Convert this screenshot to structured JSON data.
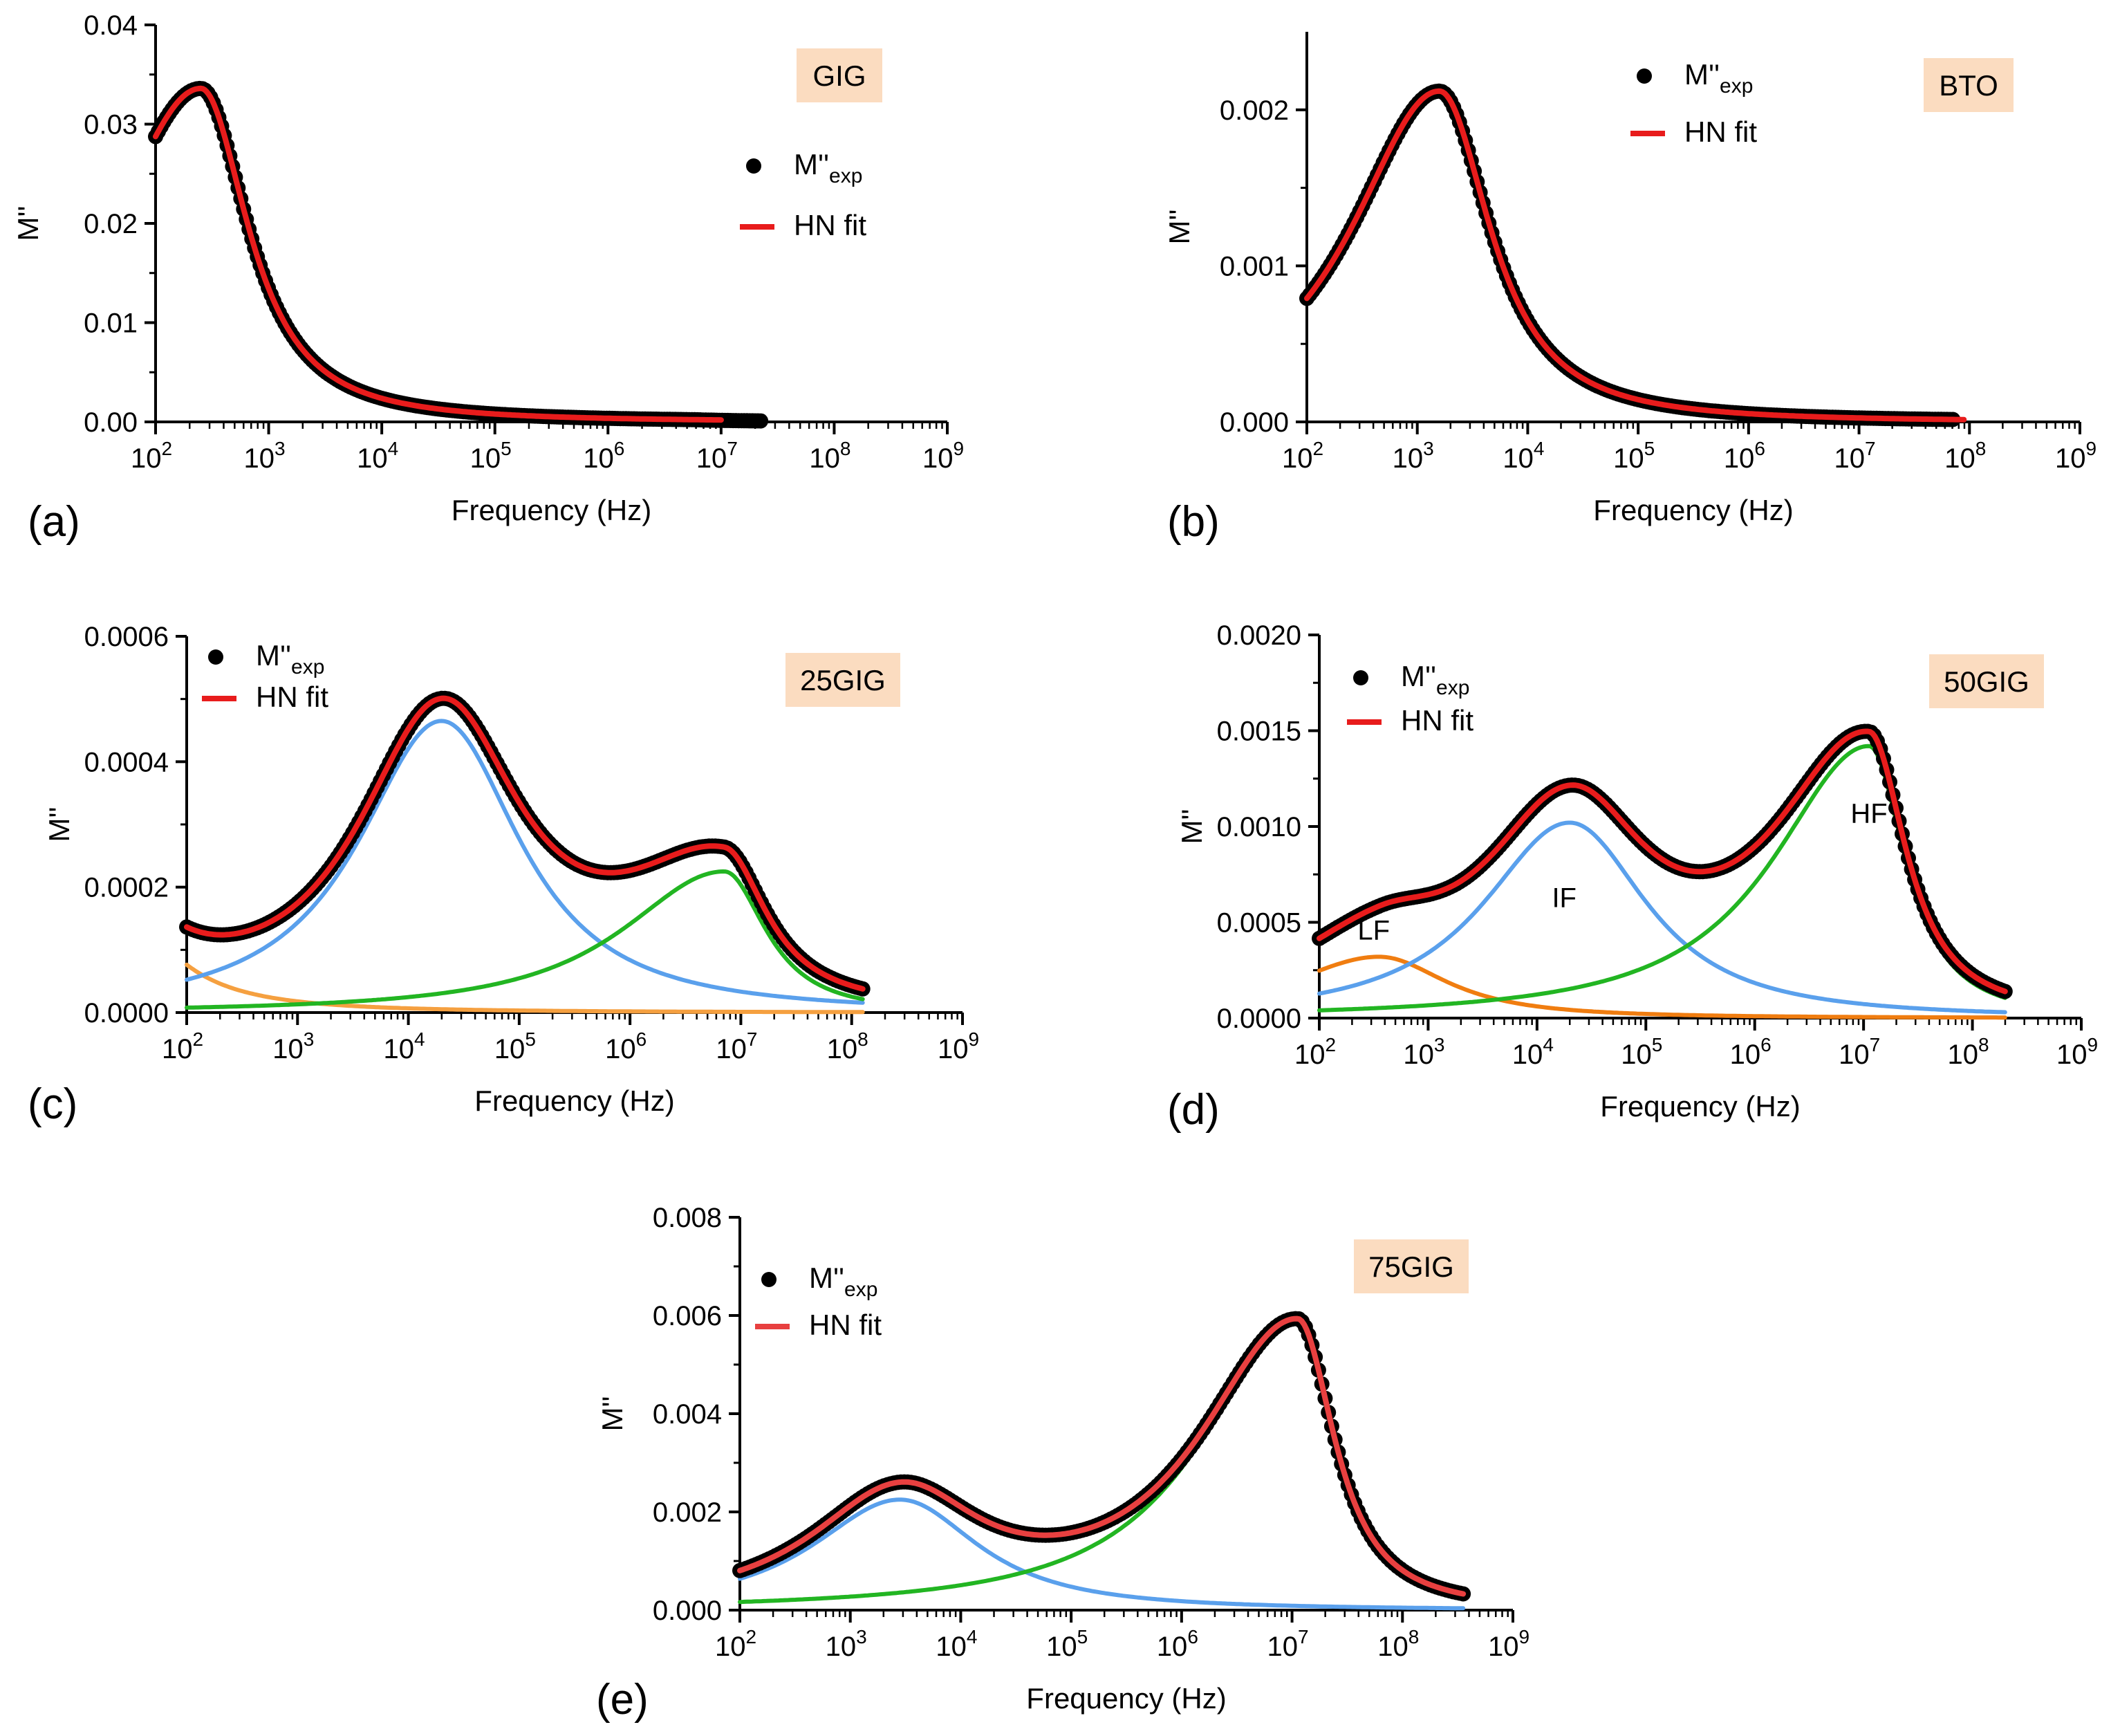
{
  "chart_data": [
    {
      "panel": "(a)",
      "type": "line",
      "sample": "GIG",
      "xlabel": "Frequency (Hz)",
      "ylabel": "M''",
      "xscale": "log",
      "xlim_exp": [
        2,
        9
      ],
      "x_tick_base": "10",
      "ylim": [
        0,
        0.04
      ],
      "y_ticks": [
        "0.00",
        "0.01",
        "0.02",
        "0.03",
        "0.04"
      ],
      "legend": {
        "position": "right",
        "exp_main": "M''",
        "exp_sub": "exp",
        "fit": "HN fit"
      },
      "series": [
        {
          "name": "M''exp",
          "kind": "points",
          "color": "#000000",
          "x_range_exp": [
            2.0,
            7.35
          ],
          "peaks": [
            [
              0.0336,
              2.4,
              0.95,
              0.5
            ]
          ],
          "offset": 0.0,
          "tail_to": 0.0001
        },
        {
          "name": "HN fit",
          "kind": "fit",
          "color": "#e81c1c",
          "x_range_exp": [
            2.0,
            7.0
          ],
          "peaks": [
            [
              0.0336,
              2.4,
              0.95,
              0.5
            ]
          ],
          "offset": 0.0
        }
      ],
      "annotations": []
    },
    {
      "panel": "(b)",
      "type": "line",
      "sample": "BTO",
      "xlabel": "Frequency (Hz)",
      "ylabel": "M''",
      "xscale": "log",
      "xlim_exp": [
        2,
        9
      ],
      "x_tick_base": "10",
      "ylim": [
        0,
        0.0025
      ],
      "y_ticks": [
        "0.000",
        "0.001",
        "0.002"
      ],
      "legend": {
        "position": "top-center",
        "exp_main": "M''",
        "exp_sub": "exp",
        "fit": "HN fit"
      },
      "series": [
        {
          "name": "M''exp",
          "kind": "points",
          "color": "#000000",
          "x_range_exp": [
            2.0,
            7.85
          ],
          "peaks": [
            [
              0.00212,
              3.2,
              0.95,
              0.55
            ]
          ],
          "offset": 0.0,
          "tail_to": 0.00013
        },
        {
          "name": "HN fit",
          "kind": "fit",
          "color": "#e81c1c",
          "x_range_exp": [
            2.0,
            7.95
          ],
          "peaks": [
            [
              0.00212,
              3.2,
              0.95,
              0.55
            ]
          ],
          "offset": 0.0
        }
      ],
      "annotations": []
    },
    {
      "panel": "(c)",
      "type": "line",
      "sample": "25GIG",
      "xlabel": "Frequency (Hz)",
      "ylabel": "M''",
      "xscale": "log",
      "xlim_exp": [
        2,
        9
      ],
      "x_tick_base": "10",
      "ylim": [
        0,
        0.0006
      ],
      "y_ticks": [
        "0.0000",
        "0.0002",
        "0.0004",
        "0.0006"
      ],
      "legend": {
        "position": "top-left",
        "exp_main": "M''",
        "exp_sub": "exp",
        "fit": "HN fit"
      },
      "series": [
        {
          "name": "M''exp",
          "kind": "points",
          "color": "#000000",
          "x_range_exp": [
            2.0,
            8.1
          ],
          "peaks": [
            [
              0.000465,
              4.3,
              0.9,
              0.85
            ],
            [
              0.000225,
              6.85,
              1.1,
              0.45
            ],
            [
              0.00022,
              1.2,
              1.0,
              0.6
            ]
          ],
          "offset": 0.0,
          "tail_to": 0.000145
        },
        {
          "name": "HN fit",
          "kind": "fit",
          "color": "#e81c1c",
          "x_range_exp": [
            2.0,
            8.1
          ],
          "peaks": [
            [
              0.000465,
              4.3,
              0.9,
              0.85
            ],
            [
              0.000225,
              6.85,
              1.1,
              0.45
            ],
            [
              0.00022,
              1.2,
              1.0,
              0.6
            ]
          ],
          "offset": 0.0
        },
        {
          "name": "LF component",
          "kind": "component",
          "color": "#f5a040",
          "x_range_exp": [
            2.0,
            8.1
          ],
          "peaks": [
            [
              0.00022,
              1.2,
              1.0,
              0.6
            ]
          ],
          "offset": 0.0
        },
        {
          "name": "IF component",
          "kind": "component",
          "color": "#5aa0ec",
          "x_range_exp": [
            2.0,
            8.1
          ],
          "peaks": [
            [
              0.000465,
              4.3,
              0.9,
              0.85
            ]
          ],
          "offset": 0.0
        },
        {
          "name": "HF component",
          "kind": "component",
          "color": "#22b522",
          "x_range_exp": [
            2.0,
            8.1
          ],
          "peaks": [
            [
              0.000225,
              6.85,
              1.1,
              0.45
            ]
          ],
          "offset": 0.0
        }
      ],
      "annotations": []
    },
    {
      "panel": "(d)",
      "type": "line",
      "sample": "50GIG",
      "xlabel": "Frequency (Hz)",
      "ylabel": "M''",
      "xscale": "log",
      "xlim_exp": [
        2,
        9
      ],
      "x_tick_base": "10",
      "ylim": [
        0,
        0.002
      ],
      "y_ticks": [
        "0.0000",
        "0.0005",
        "0.0010",
        "0.0015",
        "0.0020"
      ],
      "legend": {
        "position": "top-left",
        "exp_main": "M''",
        "exp_sub": "exp",
        "fit": "HN fit"
      },
      "series": [
        {
          "name": "M''exp",
          "kind": "points",
          "color": "#000000",
          "x_range_exp": [
            2.0,
            8.3
          ],
          "peaks": [
            [
              0.00032,
              2.55,
              1.0,
              0.75
            ],
            [
              0.00102,
              4.3,
              0.95,
              0.85
            ],
            [
              0.00142,
              7.05,
              1.05,
              0.4
            ]
          ],
          "offset": 0.0,
          "tail_to": 0.00065
        },
        {
          "name": "HN fit",
          "kind": "fit",
          "color": "#e81c1c",
          "x_range_exp": [
            2.0,
            8.3
          ],
          "peaks": [
            [
              0.00032,
              2.55,
              1.0,
              0.75
            ],
            [
              0.00102,
              4.3,
              0.95,
              0.85
            ],
            [
              0.00142,
              7.05,
              1.05,
              0.4
            ]
          ],
          "offset": 0.0
        },
        {
          "name": "LF component",
          "kind": "component",
          "color": "#f07d10",
          "x_range_exp": [
            2.0,
            8.3
          ],
          "peaks": [
            [
              0.00032,
              2.55,
              1.0,
              0.75
            ]
          ],
          "offset": 0.0
        },
        {
          "name": "IF component",
          "kind": "component",
          "color": "#5aa0ec",
          "x_range_exp": [
            2.0,
            8.3
          ],
          "peaks": [
            [
              0.00102,
              4.3,
              0.95,
              0.85
            ]
          ],
          "offset": 0.0
        },
        {
          "name": "HF component",
          "kind": "component",
          "color": "#22b522",
          "x_range_exp": [
            2.0,
            8.3
          ],
          "peaks": [
            [
              0.00142,
              7.05,
              1.05,
              0.4
            ]
          ],
          "offset": 0.0
        }
      ],
      "annotations": [
        {
          "text": "LF",
          "x_exp": 2.5,
          "y": 0.00041
        },
        {
          "text": "IF",
          "x_exp": 4.25,
          "y": 0.00058
        },
        {
          "text": "HF",
          "x_exp": 7.05,
          "y": 0.00102
        }
      ]
    },
    {
      "panel": "(e)",
      "type": "line",
      "sample": "75GIG",
      "xlabel": "Frequency (Hz)",
      "ylabel": "M''",
      "xscale": "log",
      "xlim_exp": [
        2,
        9
      ],
      "x_tick_base": "10",
      "ylim": [
        0,
        0.008
      ],
      "y_ticks": [
        "0.000",
        "0.002",
        "0.004",
        "0.006",
        "0.008"
      ],
      "legend": {
        "position": "top-left",
        "exp_main": "M''",
        "exp_sub": "exp",
        "fit": "HN fit"
      },
      "series": [
        {
          "name": "M''exp",
          "kind": "points",
          "color": "#000000",
          "x_range_exp": [
            2.0,
            8.55
          ],
          "peaks": [
            [
              0.00225,
              3.45,
              0.95,
              0.85
            ],
            [
              0.00585,
              7.05,
              1.05,
              0.4
            ]
          ],
          "offset": 0.0,
          "tail_to": 0.0012
        },
        {
          "name": "HN fit",
          "kind": "fit",
          "color": "#e84040",
          "x_range_exp": [
            2.0,
            8.55
          ],
          "peaks": [
            [
              0.00225,
              3.45,
              0.95,
              0.85
            ],
            [
              0.00585,
              7.05,
              1.05,
              0.4
            ]
          ],
          "offset": 0.0
        },
        {
          "name": "IF component",
          "kind": "component",
          "color": "#5aa0ec",
          "x_range_exp": [
            2.0,
            8.55
          ],
          "peaks": [
            [
              0.00225,
              3.45,
              0.95,
              0.85
            ]
          ],
          "offset": 0.0
        },
        {
          "name": "HF component",
          "kind": "component",
          "color": "#22b522",
          "x_range_exp": [
            2.0,
            8.55
          ],
          "peaks": [
            [
              0.00585,
              7.05,
              1.05,
              0.4
            ]
          ],
          "offset": 0.0
        }
      ],
      "annotations": []
    }
  ],
  "style": {
    "sample_box_fill": "#fbdcc0",
    "axis_color": "#000000"
  }
}
